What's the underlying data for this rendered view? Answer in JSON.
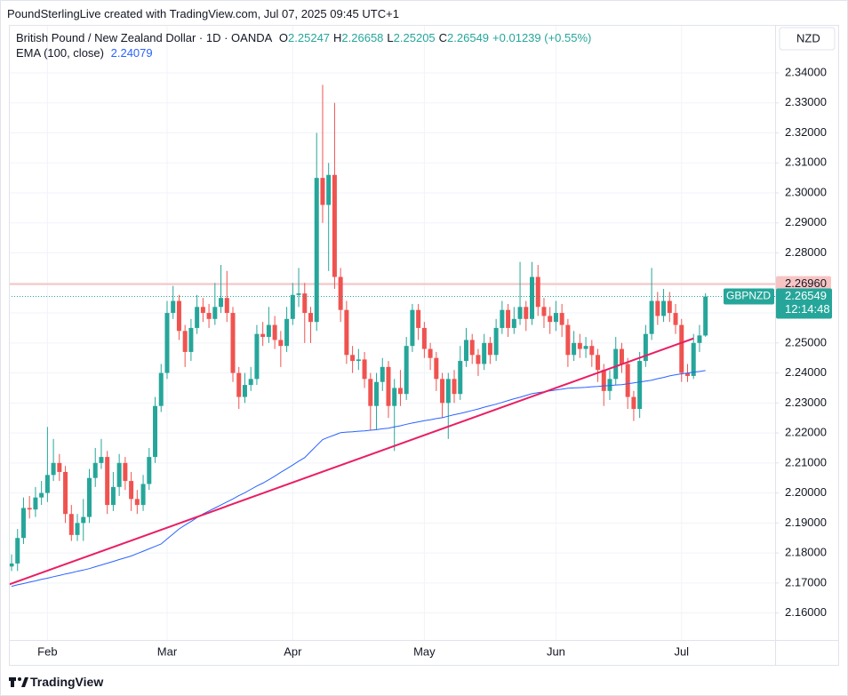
{
  "watermark": "PoundSterlingLive created with TradingView.com, Jul 07, 2025 09:45 UTC+1",
  "footer": "TradingView",
  "chart_data": {
    "type": "candlestick",
    "title": "British Pound / New Zealand Dollar · 1D · OANDA",
    "currency": "NZD",
    "symbol": "GBPNZD",
    "countdown": "12:14:48",
    "ohlc_labels": [
      "O",
      "H",
      "L",
      "C"
    ],
    "change": "+0.01239 (+0.55%)",
    "up_color": "#26a69a",
    "down_color": "#ef5350",
    "grid": true,
    "ylim": [
      2.151,
      2.356
    ],
    "yticks": [
      {
        "value": 2.16,
        "label": "2.16000"
      },
      {
        "value": 2.17,
        "label": "2.17000"
      },
      {
        "value": 2.18,
        "label": "2.18000"
      },
      {
        "value": 2.19,
        "label": "2.19000"
      },
      {
        "value": 2.2,
        "label": "2.20000"
      },
      {
        "value": 2.21,
        "label": "2.21000"
      },
      {
        "value": 2.22,
        "label": "2.22000"
      },
      {
        "value": 2.23,
        "label": "2.23000"
      },
      {
        "value": 2.24,
        "label": "2.24000"
      },
      {
        "value": 2.25,
        "label": "2.25000"
      },
      {
        "value": 2.26,
        "label": "2.26000"
      },
      {
        "value": 2.27,
        "label": "2.27000"
      },
      {
        "value": 2.28,
        "label": "2.28000"
      },
      {
        "value": 2.29,
        "label": "2.29000"
      },
      {
        "value": 2.3,
        "label": "2.30000"
      },
      {
        "value": 2.31,
        "label": "2.31000"
      },
      {
        "value": 2.32,
        "label": "2.32000"
      },
      {
        "value": 2.33,
        "label": "2.33000"
      },
      {
        "value": 2.34,
        "label": "2.34000"
      }
    ],
    "level": {
      "value": 2.2696,
      "label": "2.26960",
      "color": "#f7c4c4"
    },
    "trend_line": {
      "start": 2.1695,
      "end": 2.2515,
      "color": "#e91e63"
    },
    "categories": [
      null,
      null,
      null,
      null,
      null,
      null,
      "Feb",
      null,
      null,
      null,
      null,
      null,
      null,
      null,
      null,
      null,
      null,
      null,
      null,
      null,
      null,
      null,
      null,
      null,
      null,
      null,
      "Mar",
      null,
      null,
      null,
      null,
      null,
      null,
      null,
      null,
      null,
      null,
      null,
      null,
      null,
      null,
      null,
      null,
      null,
      null,
      null,
      null,
      "Apr",
      null,
      null,
      null,
      null,
      null,
      null,
      null,
      null,
      null,
      null,
      null,
      null,
      null,
      null,
      null,
      null,
      null,
      null,
      null,
      null,
      null,
      "May",
      null,
      null,
      null,
      null,
      null,
      null,
      null,
      null,
      null,
      null,
      null,
      null,
      null,
      null,
      null,
      null,
      null,
      null,
      null,
      null,
      null,
      "Jun",
      null,
      null,
      null,
      null,
      null,
      null,
      null,
      null,
      null,
      null,
      null,
      null,
      null,
      null,
      null,
      null,
      null,
      null,
      null,
      null,
      "Jul",
      null,
      null,
      null,
      null
    ],
    "open": [
      2.1755,
      2.1765,
      2.185,
      2.195,
      2.1945,
      2.1985,
      2.2,
      2.206,
      2.21,
      2.207,
      2.193,
      2.186,
      2.19,
      2.192,
      2.205,
      2.21,
      2.212,
      2.196,
      2.202,
      2.21,
      2.204,
      2.198,
      2.196,
      2.203,
      2.212,
      2.229,
      2.24,
      2.26,
      2.264,
      2.254,
      2.247,
      2.255,
      2.262,
      2.26,
      2.258,
      2.262,
      2.265,
      2.26,
      2.24,
      2.232,
      2.236,
      2.238,
      2.253,
      2.252,
      2.256,
      2.251,
      2.249,
      2.258,
      2.266,
      2.2665,
      2.26,
      2.257,
      2.305,
      2.296,
      2.306,
      2.272,
      2.261,
      2.246,
      2.244,
      2.2445,
      2.238,
      2.229,
      2.237,
      2.242,
      2.229,
      2.235,
      2.233,
      2.249,
      2.261,
      2.255,
      2.248,
      2.245,
      2.238,
      2.23,
      2.238,
      2.233,
      2.244,
      2.251,
      2.246,
      2.243,
      2.25,
      2.246,
      2.255,
      2.261,
      2.255,
      2.258,
      2.262,
      2.258,
      2.272,
      2.262,
      2.259,
      2.257,
      2.26,
      2.256,
      2.246,
      2.25,
      2.248,
      2.249,
      2.246,
      2.241,
      2.234,
      2.238,
      2.248,
      2.243,
      2.232,
      2.228,
      2.244,
      2.253,
      2.264,
      2.259,
      2.264,
      2.26,
      2.256,
      2.24,
      2.239,
      2.25,
      2.25247
    ],
    "high": [
      2.1795,
      2.188,
      2.1985,
      2.199,
      2.202,
      2.204,
      2.222,
      2.218,
      2.213,
      2.209,
      2.196,
      2.193,
      2.198,
      2.208,
      2.215,
      2.218,
      2.214,
      2.207,
      2.213,
      2.212,
      2.207,
      2.201,
      2.206,
      2.215,
      2.232,
      2.243,
      2.264,
      2.269,
      2.266,
      2.256,
      2.258,
      2.266,
      2.265,
      2.263,
      2.27,
      2.276,
      2.274,
      2.262,
      2.242,
      2.24,
      2.242,
      2.256,
      2.257,
      2.262,
      2.259,
      2.254,
      2.262,
      2.27,
      2.275,
      2.27,
      2.262,
      2.32,
      2.336,
      2.31,
      2.33,
      2.275,
      2.264,
      2.249,
      2.248,
      2.247,
      2.24,
      2.24,
      2.245,
      2.244,
      2.238,
      2.241,
      2.252,
      2.263,
      2.263,
      2.257,
      2.25,
      2.247,
      2.24,
      2.24,
      2.241,
      2.249,
      2.255,
      2.253,
      2.248,
      2.253,
      2.252,
      2.258,
      2.264,
      2.263,
      2.262,
      2.277,
      2.264,
      2.277,
      2.276,
      2.265,
      2.262,
      2.264,
      2.263,
      2.258,
      2.254,
      2.253,
      2.252,
      2.251,
      2.248,
      2.243,
      2.241,
      2.252,
      2.25,
      2.245,
      2.234,
      2.247,
      2.256,
      2.275,
      2.267,
      2.268,
      2.267,
      2.263,
      2.258,
      2.243,
      2.253,
      2.256,
      2.26658
    ],
    "low": [
      2.174,
      2.174,
      2.183,
      2.1915,
      2.192,
      2.196,
      2.197,
      2.204,
      2.204,
      2.19,
      2.184,
      2.184,
      2.184,
      2.19,
      2.202,
      2.208,
      2.193,
      2.194,
      2.199,
      2.201,
      2.194,
      2.193,
      2.194,
      2.201,
      2.21,
      2.227,
      2.238,
      2.258,
      2.251,
      2.242,
      2.244,
      2.253,
      2.257,
      2.255,
      2.256,
      2.26,
      2.257,
      2.237,
      2.228,
      2.23,
      2.234,
      2.236,
      2.249,
      2.25,
      2.248,
      2.242,
      2.247,
      2.256,
      2.262,
      2.25,
      2.25,
      2.254,
      2.29,
      2.274,
      2.268,
      2.257,
      2.243,
      2.24,
      2.241,
      2.235,
      2.221,
      2.221,
      2.234,
      2.225,
      2.214,
      2.229,
      2.231,
      2.247,
      2.251,
      2.245,
      2.241,
      2.234,
      2.225,
      2.218,
      2.23,
      2.231,
      2.242,
      2.243,
      2.239,
      2.241,
      2.243,
      2.244,
      2.253,
      2.252,
      2.253,
      2.256,
      2.254,
      2.256,
      2.259,
      2.255,
      2.253,
      2.254,
      2.252,
      2.242,
      2.244,
      2.245,
      2.245,
      2.242,
      2.237,
      2.229,
      2.231,
      2.236,
      2.24,
      2.228,
      2.224,
      2.225,
      2.242,
      2.251,
      2.256,
      2.257,
      2.257,
      2.253,
      2.237,
      2.237,
      2.238,
      2.247,
      2.25205
    ],
    "close": [
      2.1765,
      2.185,
      2.195,
      2.1945,
      2.1985,
      2.2,
      2.206,
      2.21,
      2.207,
      2.193,
      2.186,
      2.19,
      2.192,
      2.205,
      2.21,
      2.212,
      2.196,
      2.202,
      2.21,
      2.204,
      2.198,
      2.196,
      2.203,
      2.212,
      2.229,
      2.24,
      2.26,
      2.264,
      2.254,
      2.247,
      2.255,
      2.262,
      2.26,
      2.258,
      2.262,
      2.265,
      2.26,
      2.24,
      2.232,
      2.236,
      2.238,
      2.253,
      2.252,
      2.256,
      2.251,
      2.249,
      2.258,
      2.266,
      2.2665,
      2.26,
      2.257,
      2.305,
      2.296,
      2.306,
      2.272,
      2.261,
      2.246,
      2.244,
      2.2445,
      2.238,
      2.229,
      2.237,
      2.242,
      2.229,
      2.235,
      2.233,
      2.249,
      2.261,
      2.255,
      2.248,
      2.245,
      2.238,
      2.23,
      2.238,
      2.233,
      2.244,
      2.251,
      2.246,
      2.243,
      2.25,
      2.246,
      2.255,
      2.261,
      2.255,
      2.258,
      2.262,
      2.258,
      2.272,
      2.262,
      2.259,
      2.257,
      2.26,
      2.256,
      2.246,
      2.25,
      2.248,
      2.249,
      2.246,
      2.241,
      2.234,
      2.238,
      2.248,
      2.243,
      2.232,
      2.228,
      2.244,
      2.253,
      2.264,
      2.259,
      2.264,
      2.26,
      2.256,
      2.24,
      2.239,
      2.25,
      2.2525,
      2.26549
    ],
    "indicator": {
      "name": "EMA (100, close)",
      "color": "#2962ff",
      "values": [
        2.1689,
        2.1694,
        2.1698,
        2.1703,
        2.1707,
        2.1712,
        2.1716,
        2.1721,
        2.1725,
        2.173,
        2.1734,
        2.1739,
        2.1743,
        2.1748,
        2.1754,
        2.176,
        2.1766,
        2.1772,
        2.1778,
        2.1784,
        2.179,
        2.1798,
        2.1806,
        2.1814,
        2.1822,
        2.183,
        2.1847,
        2.1863,
        2.188,
        2.1893,
        2.1905,
        2.1918,
        2.193,
        2.194,
        2.195,
        2.196,
        2.197,
        2.198,
        2.1991,
        2.2001,
        2.2012,
        2.2023,
        2.2033,
        2.2044,
        2.2056,
        2.2069,
        2.2081,
        2.2093,
        2.2106,
        2.2118,
        2.2138,
        2.2158,
        2.2178,
        2.2186,
        2.2193,
        2.2201,
        2.2203,
        2.2204,
        2.2206,
        2.2207,
        2.2209,
        2.2211,
        2.2214,
        2.2216,
        2.222,
        2.2224,
        2.2229,
        2.2233,
        2.2237,
        2.2241,
        2.2244,
        2.2248,
        2.2251,
        2.2256,
        2.2261,
        2.2265,
        2.227,
        2.2275,
        2.228,
        2.2286,
        2.2291,
        2.2296,
        2.2302,
        2.2308,
        2.2314,
        2.2319,
        2.2325,
        2.2331,
        2.2334,
        2.2337,
        2.234,
        2.2343,
        2.2346,
        2.2349,
        2.235,
        2.2351,
        2.2352,
        2.2354,
        2.2355,
        2.2357,
        2.2358,
        2.236,
        2.2361,
        2.2364,
        2.2367,
        2.237,
        2.2373,
        2.2376,
        2.2381,
        2.2385,
        2.239,
        2.2394,
        2.2397,
        2.24,
        2.2403,
        2.2405,
        2.24079
      ]
    }
  }
}
